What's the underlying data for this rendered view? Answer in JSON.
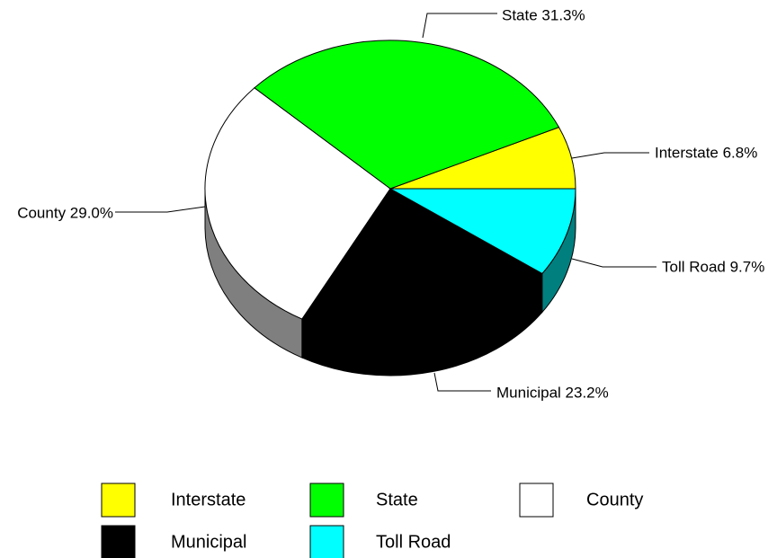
{
  "chart_data": {
    "type": "pie",
    "categories": [
      "Interstate",
      "State",
      "County",
      "Municipal",
      "Toll Road"
    ],
    "values": [
      6.8,
      31.3,
      29.0,
      23.2,
      9.7
    ],
    "value_labels": [
      "Interstate 6.8%",
      "State 31.3%",
      "County 29.0%",
      "Municipal 23.2%",
      "Toll Road 9.7%"
    ],
    "colors": [
      "#ffff00",
      "#00ff00",
      "#ffffff",
      "#000000",
      "#00ffff"
    ],
    "legend": "bottom"
  }
}
